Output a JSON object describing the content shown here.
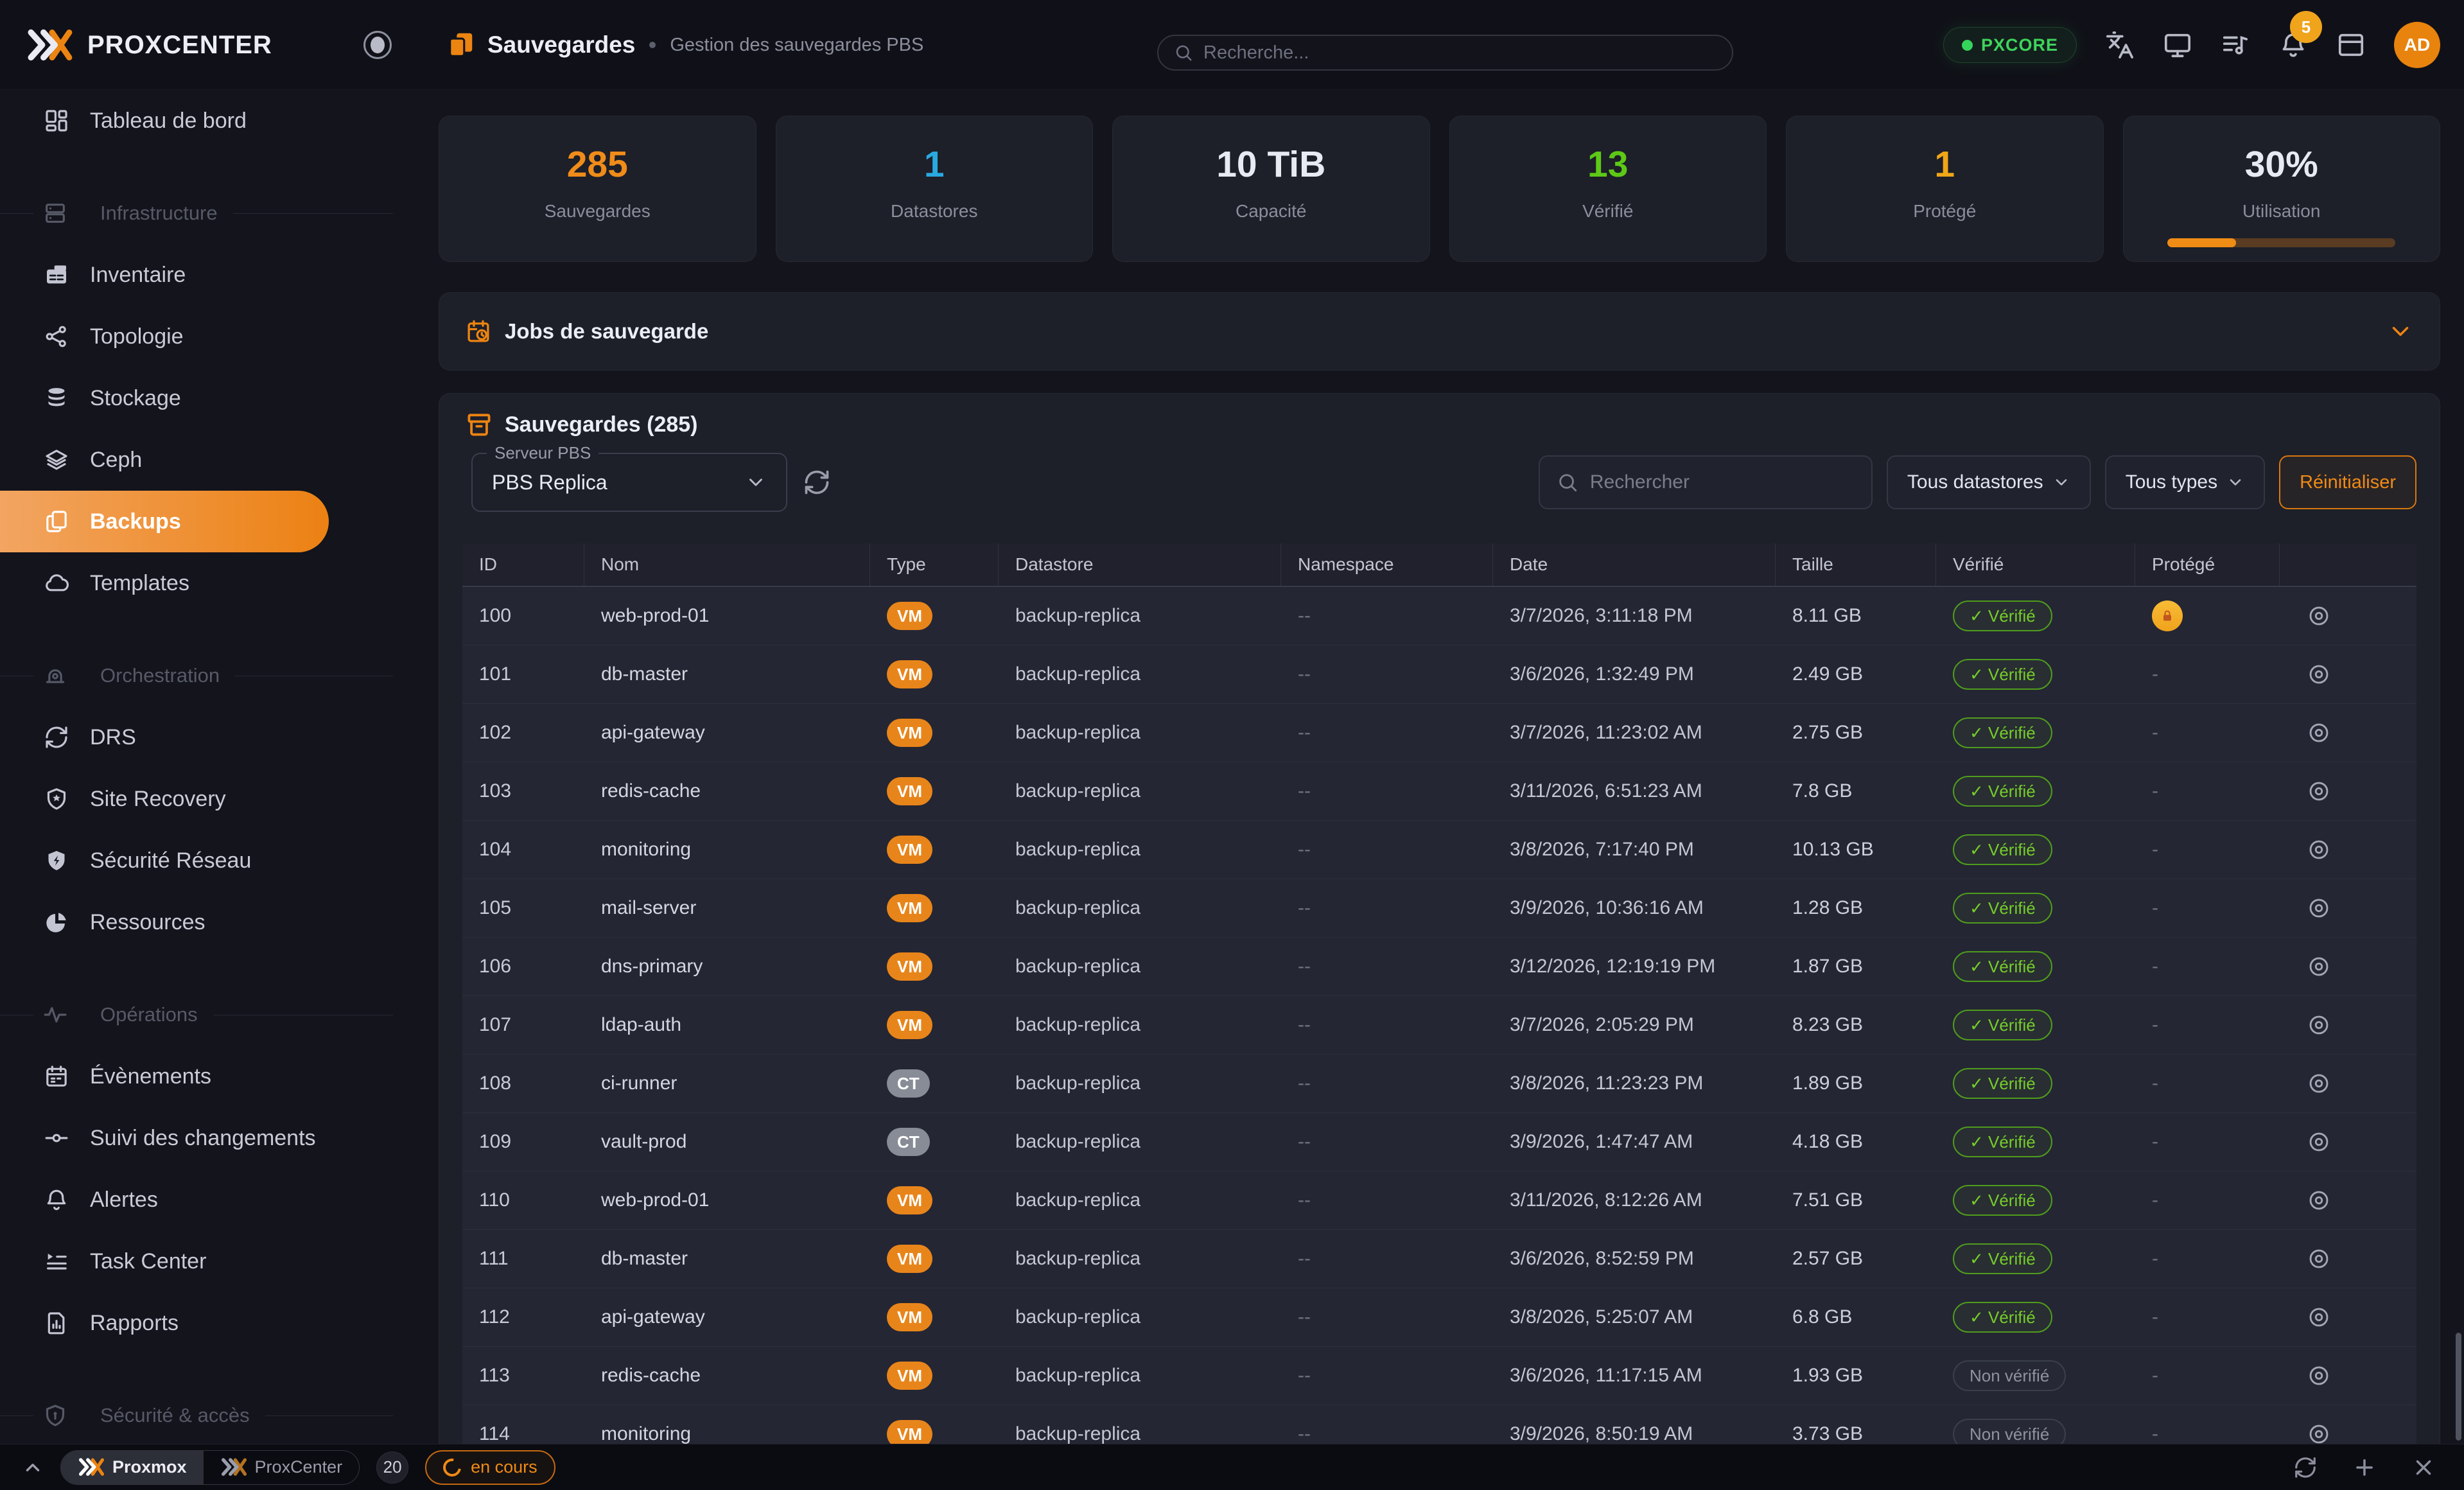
{
  "app": {
    "name": "PROXCENTER"
  },
  "topbar": {
    "search_placeholder": "Recherche...",
    "pxcore_label": "PXCORE",
    "notification_count": "5",
    "avatar_initials": "AD"
  },
  "header": {
    "title": "Sauvegardes",
    "subtitle": "Gestion des sauvegardes PBS"
  },
  "sidebar": {
    "entries": [
      {
        "kind": "item",
        "icon": "dashboard",
        "label": "Tableau de bord"
      },
      {
        "kind": "section",
        "icon": "server",
        "label": "Infrastructure"
      },
      {
        "kind": "item",
        "icon": "inventory",
        "label": "Inventaire"
      },
      {
        "kind": "item",
        "icon": "topology",
        "label": "Topologie"
      },
      {
        "kind": "item",
        "icon": "storage",
        "label": "Stockage"
      },
      {
        "kind": "item",
        "icon": "ceph",
        "label": "Ceph"
      },
      {
        "kind": "item",
        "icon": "backups",
        "label": "Backups",
        "active": true
      },
      {
        "kind": "item",
        "icon": "templates",
        "label": "Templates"
      },
      {
        "kind": "section",
        "icon": "orchestration",
        "label": "Orchestration"
      },
      {
        "kind": "item",
        "icon": "drs",
        "label": "DRS"
      },
      {
        "kind": "item",
        "icon": "siterecovery",
        "label": "Site Recovery"
      },
      {
        "kind": "item",
        "icon": "netsecurity",
        "label": "Sécurité Réseau"
      },
      {
        "kind": "item",
        "icon": "resources",
        "label": "Ressources"
      },
      {
        "kind": "section",
        "icon": "operations",
        "label": "Opérations"
      },
      {
        "kind": "item",
        "icon": "events",
        "label": "Évènements"
      },
      {
        "kind": "item",
        "icon": "changes",
        "label": "Suivi des changements"
      },
      {
        "kind": "item",
        "icon": "alerts",
        "label": "Alertes"
      },
      {
        "kind": "item",
        "icon": "tasks",
        "label": "Task Center"
      },
      {
        "kind": "item",
        "icon": "reports",
        "label": "Rapports"
      },
      {
        "kind": "section",
        "icon": "secaccess",
        "label": "Sécurité & accès"
      }
    ]
  },
  "stats": [
    {
      "value": "285",
      "label": "Sauvegardes",
      "color": "#ef8c1a"
    },
    {
      "value": "1",
      "label": "Datastores",
      "color": "#2aa9e0"
    },
    {
      "value": "10 TiB",
      "label": "Capacité",
      "color": "#e8eaf2"
    },
    {
      "value": "13",
      "label": "Vérifié",
      "color": "#5dc916"
    },
    {
      "value": "1",
      "label": "Protégé",
      "color": "#f0a617"
    },
    {
      "value": "30%",
      "label": "Utilisation",
      "color": "#e8eaf2",
      "progress": 30
    }
  ],
  "jobs_panel": {
    "title": "Jobs de sauvegarde"
  },
  "backups_panel": {
    "title": "Sauvegardes (285)",
    "server_select": {
      "label": "Serveur PBS",
      "value": "PBS Replica"
    },
    "search_placeholder": "Rechercher",
    "filters": {
      "datastores": "Tous datastores",
      "types": "Tous types",
      "reset": "Réinitialiser"
    },
    "columns": [
      "ID",
      "Nom",
      "Type",
      "Datastore",
      "Namespace",
      "Date",
      "Taille",
      "Vérifié",
      "Protégé",
      ""
    ],
    "badges": {
      "verified": "✓ Vérifié",
      "not_verified": "Non vérifié",
      "dash": "-",
      "namespace_empty": "--"
    },
    "rows": [
      {
        "id": "100",
        "name": "web-prod-01",
        "type": "VM",
        "datastore": "backup-replica",
        "date": "3/7/2026, 3:11:18 PM",
        "size": "8.11 GB",
        "verified": true,
        "protected": true
      },
      {
        "id": "101",
        "name": "db-master",
        "type": "VM",
        "datastore": "backup-replica",
        "date": "3/6/2026, 1:32:49 PM",
        "size": "2.49 GB",
        "verified": true,
        "protected": false
      },
      {
        "id": "102",
        "name": "api-gateway",
        "type": "VM",
        "datastore": "backup-replica",
        "date": "3/7/2026, 11:23:02 AM",
        "size": "2.75 GB",
        "verified": true,
        "protected": false
      },
      {
        "id": "103",
        "name": "redis-cache",
        "type": "VM",
        "datastore": "backup-replica",
        "date": "3/11/2026, 6:51:23 AM",
        "size": "7.8 GB",
        "verified": true,
        "protected": false
      },
      {
        "id": "104",
        "name": "monitoring",
        "type": "VM",
        "datastore": "backup-replica",
        "date": "3/8/2026, 7:17:40 PM",
        "size": "10.13 GB",
        "verified": true,
        "protected": false
      },
      {
        "id": "105",
        "name": "mail-server",
        "type": "VM",
        "datastore": "backup-replica",
        "date": "3/9/2026, 10:36:16 AM",
        "size": "1.28 GB",
        "verified": true,
        "protected": false
      },
      {
        "id": "106",
        "name": "dns-primary",
        "type": "VM",
        "datastore": "backup-replica",
        "date": "3/12/2026, 12:19:19 PM",
        "size": "1.87 GB",
        "verified": true,
        "protected": false
      },
      {
        "id": "107",
        "name": "ldap-auth",
        "type": "VM",
        "datastore": "backup-replica",
        "date": "3/7/2026, 2:05:29 PM",
        "size": "8.23 GB",
        "verified": true,
        "protected": false
      },
      {
        "id": "108",
        "name": "ci-runner",
        "type": "CT",
        "datastore": "backup-replica",
        "date": "3/8/2026, 11:23:23 PM",
        "size": "1.89 GB",
        "verified": true,
        "protected": false
      },
      {
        "id": "109",
        "name": "vault-prod",
        "type": "CT",
        "datastore": "backup-replica",
        "date": "3/9/2026, 1:47:47 AM",
        "size": "4.18 GB",
        "verified": true,
        "protected": false
      },
      {
        "id": "110",
        "name": "web-prod-01",
        "type": "VM",
        "datastore": "backup-replica",
        "date": "3/11/2026, 8:12:26 AM",
        "size": "7.51 GB",
        "verified": true,
        "protected": false
      },
      {
        "id": "111",
        "name": "db-master",
        "type": "VM",
        "datastore": "backup-replica",
        "date": "3/6/2026, 8:52:59 PM",
        "size": "2.57 GB",
        "verified": true,
        "protected": false
      },
      {
        "id": "112",
        "name": "api-gateway",
        "type": "VM",
        "datastore": "backup-replica",
        "date": "3/8/2026, 5:25:07 AM",
        "size": "6.8 GB",
        "verified": true,
        "protected": false
      },
      {
        "id": "113",
        "name": "redis-cache",
        "type": "VM",
        "datastore": "backup-replica",
        "date": "3/6/2026, 11:17:15 AM",
        "size": "1.93 GB",
        "verified": false,
        "protected": false
      },
      {
        "id": "114",
        "name": "monitoring",
        "type": "VM",
        "datastore": "backup-replica",
        "date": "3/9/2026, 8:50:19 AM",
        "size": "3.73 GB",
        "verified": false,
        "protected": false
      }
    ]
  },
  "bottombar": {
    "tabs": [
      {
        "label": "Proxmox",
        "active": true
      },
      {
        "label": "ProxCenter",
        "active": false
      }
    ],
    "count": "20",
    "status": "en cours"
  },
  "colors": {
    "accent_orange": "#ec8412",
    "verified_green": "#76cd2a",
    "info_blue": "#2aa9e0",
    "warn_amber": "#f0a617",
    "ct_gray": "#878c96"
  }
}
